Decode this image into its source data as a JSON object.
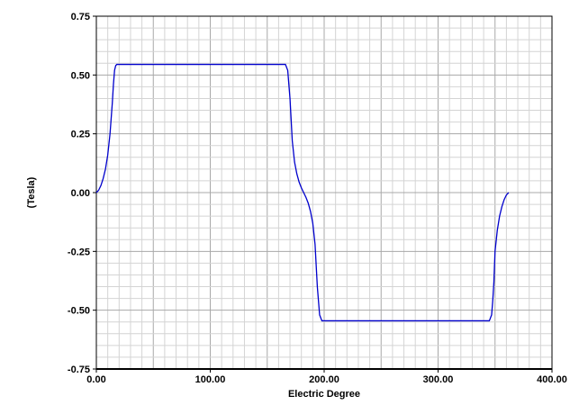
{
  "chart_data": {
    "type": "line",
    "title": "",
    "xlabel": "Electric Degree",
    "ylabel": "(Tesla)",
    "xlim": [
      0,
      400
    ],
    "ylim": [
      -0.75,
      0.75
    ],
    "x_ticks": [
      0,
      100,
      200,
      300,
      400
    ],
    "x_tick_labels": [
      "0.00",
      "100.00",
      "200.00",
      "300.00",
      "400.00"
    ],
    "y_ticks": [
      0.75,
      0.5,
      0.25,
      0,
      -0.25,
      -0.5,
      -0.75
    ],
    "y_tick_labels": [
      "0.75",
      "0.50",
      "0.25",
      "0.00",
      "-0.25",
      "-0.50",
      "-0.75"
    ],
    "grid": true,
    "line_color": "#0000cc",
    "series": [
      {
        "x": [
          0,
          2,
          4,
          6,
          8,
          10,
          12,
          14,
          15,
          16,
          17,
          18,
          20,
          100,
          166,
          168,
          170,
          172,
          174,
          176,
          178,
          180,
          182,
          184,
          186,
          188,
          190,
          192,
          194,
          196,
          198,
          200,
          280,
          345,
          347,
          348,
          349,
          350,
          352,
          354,
          356,
          358,
          360,
          362
        ],
        "y": [
          0.0,
          0.01,
          0.03,
          0.06,
          0.1,
          0.16,
          0.25,
          0.38,
          0.46,
          0.52,
          0.54,
          0.545,
          0.545,
          0.545,
          0.545,
          0.52,
          0.4,
          0.22,
          0.13,
          0.08,
          0.045,
          0.02,
          0.0,
          -0.02,
          -0.045,
          -0.08,
          -0.13,
          -0.22,
          -0.4,
          -0.52,
          -0.545,
          -0.545,
          -0.545,
          -0.545,
          -0.52,
          -0.46,
          -0.38,
          -0.25,
          -0.16,
          -0.1,
          -0.06,
          -0.03,
          -0.01,
          0.0
        ]
      }
    ]
  }
}
